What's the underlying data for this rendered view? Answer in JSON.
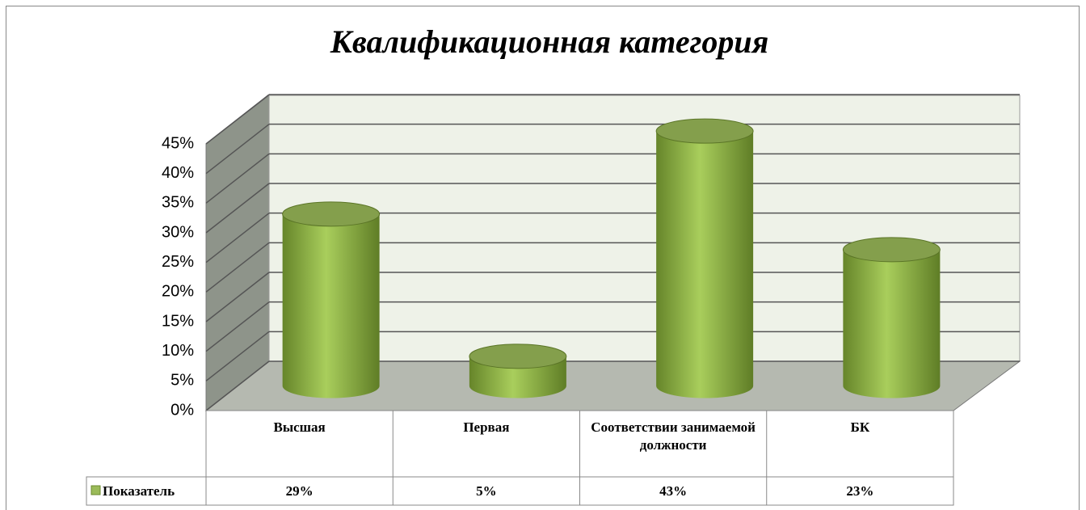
{
  "chart_data": {
    "type": "bar3d",
    "title": "Квалификационная категория",
    "categories": [
      "Высшая",
      "Первая",
      "Соответствии занимаемой должности",
      "БК"
    ],
    "series": [
      {
        "name": "Показатель",
        "color": "#9bbb59",
        "values": [
          29,
          5,
          43,
          23
        ],
        "value_labels": [
          "29%",
          "5%",
          "43%",
          "23%"
        ]
      }
    ],
    "ylim": [
      0,
      45
    ],
    "yticks": [
      {
        "value": 0,
        "label": "0%"
      },
      {
        "value": 5,
        "label": "5%"
      },
      {
        "value": 10,
        "label": "10%"
      },
      {
        "value": 15,
        "label": "15%"
      },
      {
        "value": 20,
        "label": "20%"
      },
      {
        "value": 25,
        "label": "25%"
      },
      {
        "value": 30,
        "label": "30%"
      },
      {
        "value": 35,
        "label": "35%"
      },
      {
        "value": 40,
        "label": "40%"
      },
      {
        "value": 45,
        "label": "45%"
      }
    ],
    "grid": true
  }
}
